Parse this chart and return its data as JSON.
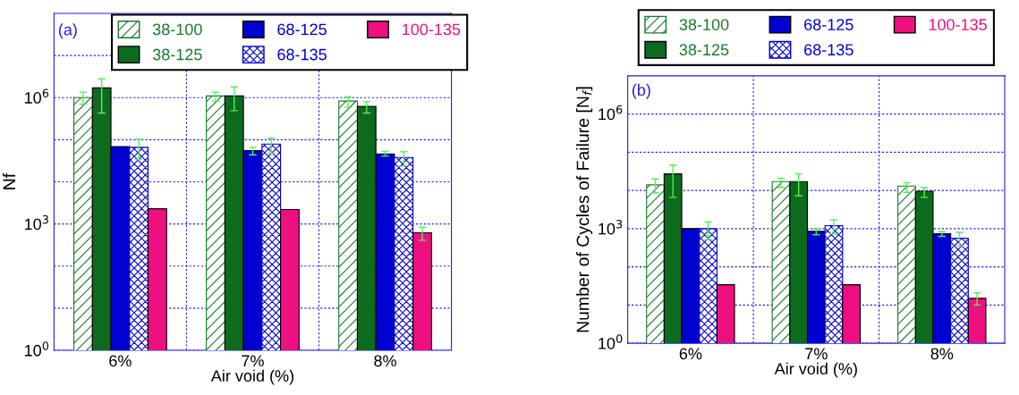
{
  "chart_data": [
    {
      "type": "bar",
      "xlabel": "Air void (%)",
      "ylabel": "Nf",
      "categories": [
        "6%",
        "7%",
        "8%"
      ],
      "log": true,
      "ylim": [
        1,
        100000000
      ],
      "yticks": [
        {
          "value": 1,
          "label": "10$^{0}$"
        },
        {
          "value": 10,
          "label": null
        },
        {
          "value": 100,
          "label": null
        },
        {
          "value": 1000,
          "label": "10$^{3}$"
        },
        {
          "value": 10000,
          "label": null
        },
        {
          "value": 100000,
          "label": null
        },
        {
          "value": 1000000,
          "label": "10$^{6}$"
        },
        {
          "value": 10000000,
          "label": null
        }
      ],
      "grid": true,
      "legend": "top right",
      "annotations": [
        "(a)"
      ],
      "series": [
        {
          "name": "38-100",
          "color": "#1a7a2a",
          "values": [
            1000000,
            1100000,
            830000
          ],
          "errors": [
            [
              700000,
              1350000
            ],
            [
              830000,
              1350000
            ],
            [
              590000,
              1040000
            ]
          ]
        },
        {
          "name": "38-125",
          "color": "#0d6b1e",
          "values": [
            1700000,
            1100000,
            620000
          ],
          "errors": [
            [
              430000,
              2800000
            ],
            [
              490000,
              1800000
            ],
            [
              430000,
              800000
            ]
          ]
        },
        {
          "name": "68-125",
          "color": "#0000d0",
          "values": [
            69000,
            55000,
            46000
          ],
          "errors": [
            null,
            [
              44000,
              66000
            ],
            [
              41000,
              53000
            ]
          ]
        },
        {
          "name": "68-135",
          "color": "#0000d0",
          "values": [
            66000,
            79000,
            38000
          ],
          "errors": [
            [
              34000,
              103000
            ],
            [
              48000,
              110000
            ],
            [
              24000,
              52000
            ]
          ]
        },
        {
          "name": "100-135",
          "color": "#ee1080",
          "values": [
            2300,
            2200,
            620
          ],
          "errors": [
            null,
            null,
            [
              410,
              840
            ]
          ]
        }
      ]
    },
    {
      "type": "bar",
      "xlabel": "Air void (%)",
      "ylabel": "Number of Cycles of Failure [N$_{f}$]",
      "categories": [
        "6%",
        "7%",
        "8%"
      ],
      "log": true,
      "ylim": [
        1,
        10000000
      ],
      "yticks": [
        {
          "value": 1,
          "label": "10$^{0}$"
        },
        {
          "value": 10,
          "label": null
        },
        {
          "value": 100,
          "label": null
        },
        {
          "value": 1000,
          "label": "10$^{3}$"
        },
        {
          "value": 10000,
          "label": null
        },
        {
          "value": 100000,
          "label": null
        },
        {
          "value": 1000000,
          "label": "10$^{6}$"
        }
      ],
      "grid": true,
      "legend": "top",
      "annotations": [
        "(b)"
      ],
      "series": [
        {
          "name": "38-100",
          "color": "#1a7a2a",
          "values": [
            14000,
            17000,
            13000
          ],
          "errors": [
            [
              8700,
              20000
            ],
            [
              12000,
              21000
            ],
            [
              8900,
              16000
            ]
          ]
        },
        {
          "name": "38-125",
          "color": "#0d6b1e",
          "values": [
            27000,
            17000,
            9500
          ],
          "errors": [
            [
              6600,
              46000
            ],
            [
              7300,
              27000
            ],
            [
              6600,
              12000
            ]
          ]
        },
        {
          "name": "68-125",
          "color": "#0000d0",
          "values": [
            1000,
            850,
            740
          ],
          "errors": [
            null,
            [
              690,
              980
            ],
            [
              630,
              830
            ]
          ]
        },
        {
          "name": "68-135",
          "color": "#0000d0",
          "values": [
            1000,
            1200,
            560
          ],
          "errors": [
            [
              520,
              1500
            ],
            [
              720,
              1700
            ],
            [
              360,
              800
            ]
          ]
        },
        {
          "name": "100-135",
          "color": "#ee1080",
          "values": [
            34,
            34,
            15
          ],
          "errors": [
            null,
            null,
            [
              10,
              21
            ]
          ]
        }
      ]
    }
  ]
}
